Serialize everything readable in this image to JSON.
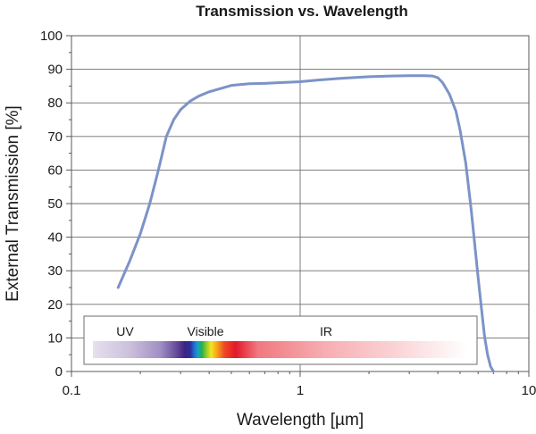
{
  "chart_data": {
    "type": "line",
    "title": "Transmission vs. Wavelength",
    "xlabel": "Wavelength [µm]",
    "ylabel": "External Transmission [%]",
    "xscale": "log",
    "xlim": [
      0.1,
      10
    ],
    "ylim": [
      0,
      100
    ],
    "x_ticks": [
      0.1,
      1,
      10
    ],
    "x_tick_labels": [
      "0.1",
      "1",
      "10"
    ],
    "y_ticks": [
      0,
      10,
      20,
      30,
      40,
      50,
      60,
      70,
      80,
      90,
      100
    ],
    "y_tick_labels": [
      "0",
      "10",
      "20",
      "30",
      "40",
      "50",
      "60",
      "70",
      "80",
      "90",
      "100"
    ],
    "grid": true,
    "series": [
      {
        "color": "#7b93c8",
        "x": [
          0.16,
          0.18,
          0.2,
          0.22,
          0.24,
          0.26,
          0.28,
          0.3,
          0.33,
          0.36,
          0.4,
          0.45,
          0.5,
          0.6,
          0.7,
          0.8,
          1.0,
          1.2,
          1.5,
          2.0,
          2.5,
          3.0,
          3.5,
          3.8,
          4.0,
          4.2,
          4.5,
          4.8,
          5.0,
          5.3,
          5.6,
          6.0,
          6.2,
          6.4,
          6.6,
          6.8,
          7.0
        ],
        "y": [
          25,
          33,
          41,
          50,
          60,
          70,
          75,
          78,
          80.5,
          82,
          83.3,
          84.3,
          85.2,
          85.7,
          85.8,
          86.0,
          86.3,
          86.8,
          87.3,
          87.8,
          88.0,
          88.1,
          88.1,
          88.0,
          87.5,
          86.0,
          82.5,
          77.5,
          72.0,
          62.0,
          48.0,
          28.0,
          19.0,
          10.5,
          5.0,
          1.5,
          0
        ]
      }
    ],
    "legend_box": {
      "bands": [
        {
          "label": "UV"
        },
        {
          "label": "Visible"
        },
        {
          "label": "IR"
        }
      ]
    }
  }
}
